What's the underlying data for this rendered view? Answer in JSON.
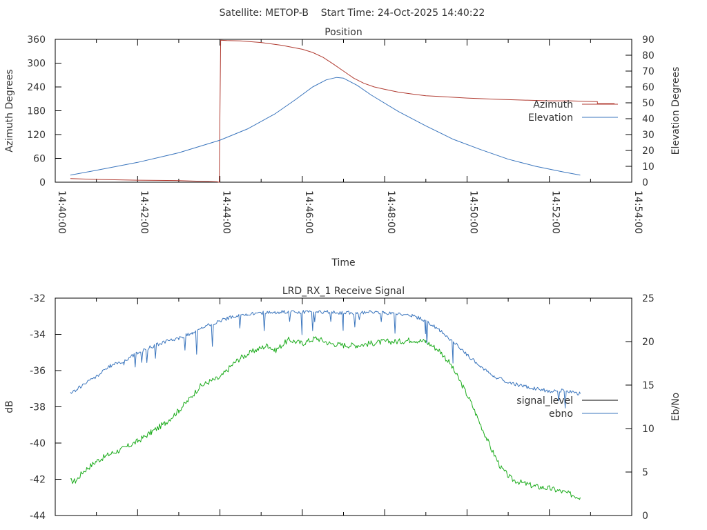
{
  "suptitle": "Satellite: METOP-B    Start Time: 24-Oct-2025 14:40:22",
  "chart_data": [
    {
      "type": "line",
      "title": "Position",
      "xlabel": "Time",
      "ylabel_left": "Azimuth Degrees",
      "ylabel_right": "Elevation Degrees",
      "xlim": [
        0,
        840
      ],
      "xunit": "seconds after 14:40:00",
      "xticks": [
        0,
        120,
        240,
        360,
        480,
        600,
        720,
        840
      ],
      "xtick_labels": [
        "14:40:00",
        "14:42:00",
        "14:44:00",
        "14:46:00",
        "14:48:00",
        "14:50:00",
        "14:52:00",
        "14:54:00"
      ],
      "ylim_left": [
        0,
        360
      ],
      "yticks_left": [
        0,
        60,
        120,
        180,
        240,
        300,
        360
      ],
      "ylim_right": [
        0,
        90
      ],
      "yticks_right": [
        0,
        10,
        20,
        30,
        40,
        50,
        60,
        70,
        80,
        90
      ],
      "legend_position": "right",
      "series": [
        {
          "name": "Azimuth",
          "axis": "left",
          "color": "#b03a30",
          "points": [
            [
              22,
              9
            ],
            [
              60,
              7
            ],
            [
              120,
              5
            ],
            [
              180,
              4
            ],
            [
              236,
              1
            ],
            [
              238,
              0
            ],
            [
              239,
              0
            ],
            [
              240,
              180
            ],
            [
              241,
              358
            ],
            [
              250,
              357
            ],
            [
              270,
              356
            ],
            [
              300,
              352
            ],
            [
              330,
              345
            ],
            [
              360,
              335
            ],
            [
              375,
              327
            ],
            [
              390,
              315
            ],
            [
              405,
              298
            ],
            [
              420,
              280
            ],
            [
              435,
              262
            ],
            [
              450,
              249
            ],
            [
              465,
              240
            ],
            [
              480,
              234
            ],
            [
              500,
              227
            ],
            [
              520,
              222
            ],
            [
              540,
              218
            ],
            [
              570,
              215
            ],
            [
              600,
              212
            ],
            [
              640,
              209
            ],
            [
              680,
              207
            ],
            [
              720,
              205
            ],
            [
              750,
              205
            ],
            [
              770,
              204
            ],
            [
              790,
              203
            ],
            [
              790,
              198
            ],
            [
              815,
              198
            ]
          ]
        },
        {
          "name": "Elevation",
          "axis": "right",
          "color": "#3a75bd",
          "points": [
            [
              22,
              4.5
            ],
            [
              60,
              7.5
            ],
            [
              120,
              12.5
            ],
            [
              180,
              18.5
            ],
            [
              240,
              26.5
            ],
            [
              280,
              33.5
            ],
            [
              320,
              43
            ],
            [
              350,
              52
            ],
            [
              375,
              60
            ],
            [
              395,
              64.5
            ],
            [
              410,
              66
            ],
            [
              420,
              65.5
            ],
            [
              440,
              61
            ],
            [
              460,
              55
            ],
            [
              500,
              44.5
            ],
            [
              540,
              35.5
            ],
            [
              580,
              27
            ],
            [
              620,
              20.5
            ],
            [
              660,
              14.5
            ],
            [
              700,
              10
            ],
            [
              740,
              6.5
            ],
            [
              765,
              4.5
            ]
          ]
        }
      ]
    },
    {
      "type": "line",
      "title": "LRD_RX_1 Receive Signal",
      "xlabel": "",
      "ylabel_left": "dB",
      "ylabel_right": "Eb/No",
      "xlim": [
        0,
        840
      ],
      "xunit": "seconds after 14:40:00",
      "xticks": [
        0,
        120,
        240,
        360,
        480,
        600,
        720,
        840
      ],
      "ylim_left": [
        -44,
        -32
      ],
      "yticks_left": [
        -44,
        -42,
        -40,
        -38,
        -36,
        -34,
        -32
      ],
      "ylim_right": [
        0,
        25
      ],
      "yticks_right": [
        0,
        5,
        10,
        15,
        20,
        25
      ],
      "legend_position": "right",
      "series": [
        {
          "name": "signal_level",
          "axis": "left",
          "color": "#1aab1a",
          "legend_color": "#000000",
          "points": [
            [
              22,
              -42.1
            ],
            [
              30,
              -42.1
            ],
            [
              40,
              -41.6
            ],
            [
              50,
              -41.3
            ],
            [
              60,
              -41.0
            ],
            [
              80,
              -40.6
            ],
            [
              100,
              -40.3
            ],
            [
              120,
              -39.9
            ],
            [
              140,
              -39.4
            ],
            [
              160,
              -38.9
            ],
            [
              180,
              -38.2
            ],
            [
              195,
              -37.6
            ],
            [
              210,
              -36.9
            ],
            [
              225,
              -36.6
            ],
            [
              240,
              -36.4
            ],
            [
              260,
              -35.6
            ],
            [
              270,
              -35.3
            ],
            [
              290,
              -34.9
            ],
            [
              310,
              -34.6
            ],
            [
              320,
              -34.9
            ],
            [
              340,
              -34.3
            ],
            [
              360,
              -34.5
            ],
            [
              380,
              -34.2
            ],
            [
              400,
              -34.5
            ],
            [
              420,
              -34.6
            ],
            [
              440,
              -34.6
            ],
            [
              460,
              -34.5
            ],
            [
              480,
              -34.4
            ],
            [
              500,
              -34.4
            ],
            [
              520,
              -34.3
            ],
            [
              540,
              -34.4
            ],
            [
              560,
              -34.9
            ],
            [
              575,
              -35.6
            ],
            [
              590,
              -36.6
            ],
            [
              605,
              -37.7
            ],
            [
              620,
              -39.0
            ],
            [
              635,
              -40.3
            ],
            [
              650,
              -41.4
            ],
            [
              665,
              -42.0
            ],
            [
              680,
              -42.2
            ],
            [
              700,
              -42.4
            ],
            [
              720,
              -42.5
            ],
            [
              740,
              -42.7
            ],
            [
              765,
              -43.0
            ]
          ]
        },
        {
          "name": "ebno",
          "axis": "right",
          "color": "#3a75bd",
          "points": [
            [
              22,
              14
            ],
            [
              40,
              15
            ],
            [
              60,
              16
            ],
            [
              80,
              17.2
            ],
            [
              100,
              17.8
            ],
            [
              120,
              18.7
            ],
            [
              140,
              19.4
            ],
            [
              160,
              20
            ],
            [
              180,
              20.4
            ],
            [
              200,
              21
            ],
            [
              220,
              21.8
            ],
            [
              240,
              22.4
            ],
            [
              260,
              22.9
            ],
            [
              280,
              23.1
            ],
            [
              300,
              23.3
            ],
            [
              320,
              23.4
            ],
            [
              340,
              23.4
            ],
            [
              360,
              23.4
            ],
            [
              380,
              23.4
            ],
            [
              400,
              23.4
            ],
            [
              420,
              23.3
            ],
            [
              440,
              23.3
            ],
            [
              460,
              23.4
            ],
            [
              480,
              23.3
            ],
            [
              500,
              23.2
            ],
            [
              520,
              23
            ],
            [
              540,
              22.4
            ],
            [
              560,
              21.3
            ],
            [
              580,
              20
            ],
            [
              600,
              18.5
            ],
            [
              620,
              17.1
            ],
            [
              640,
              16
            ],
            [
              660,
              15.3
            ],
            [
              680,
              14.9
            ],
            [
              700,
              14.6
            ],
            [
              720,
              14.3
            ],
            [
              740,
              14.4
            ],
            [
              765,
              14
            ]
          ]
        }
      ]
    }
  ]
}
